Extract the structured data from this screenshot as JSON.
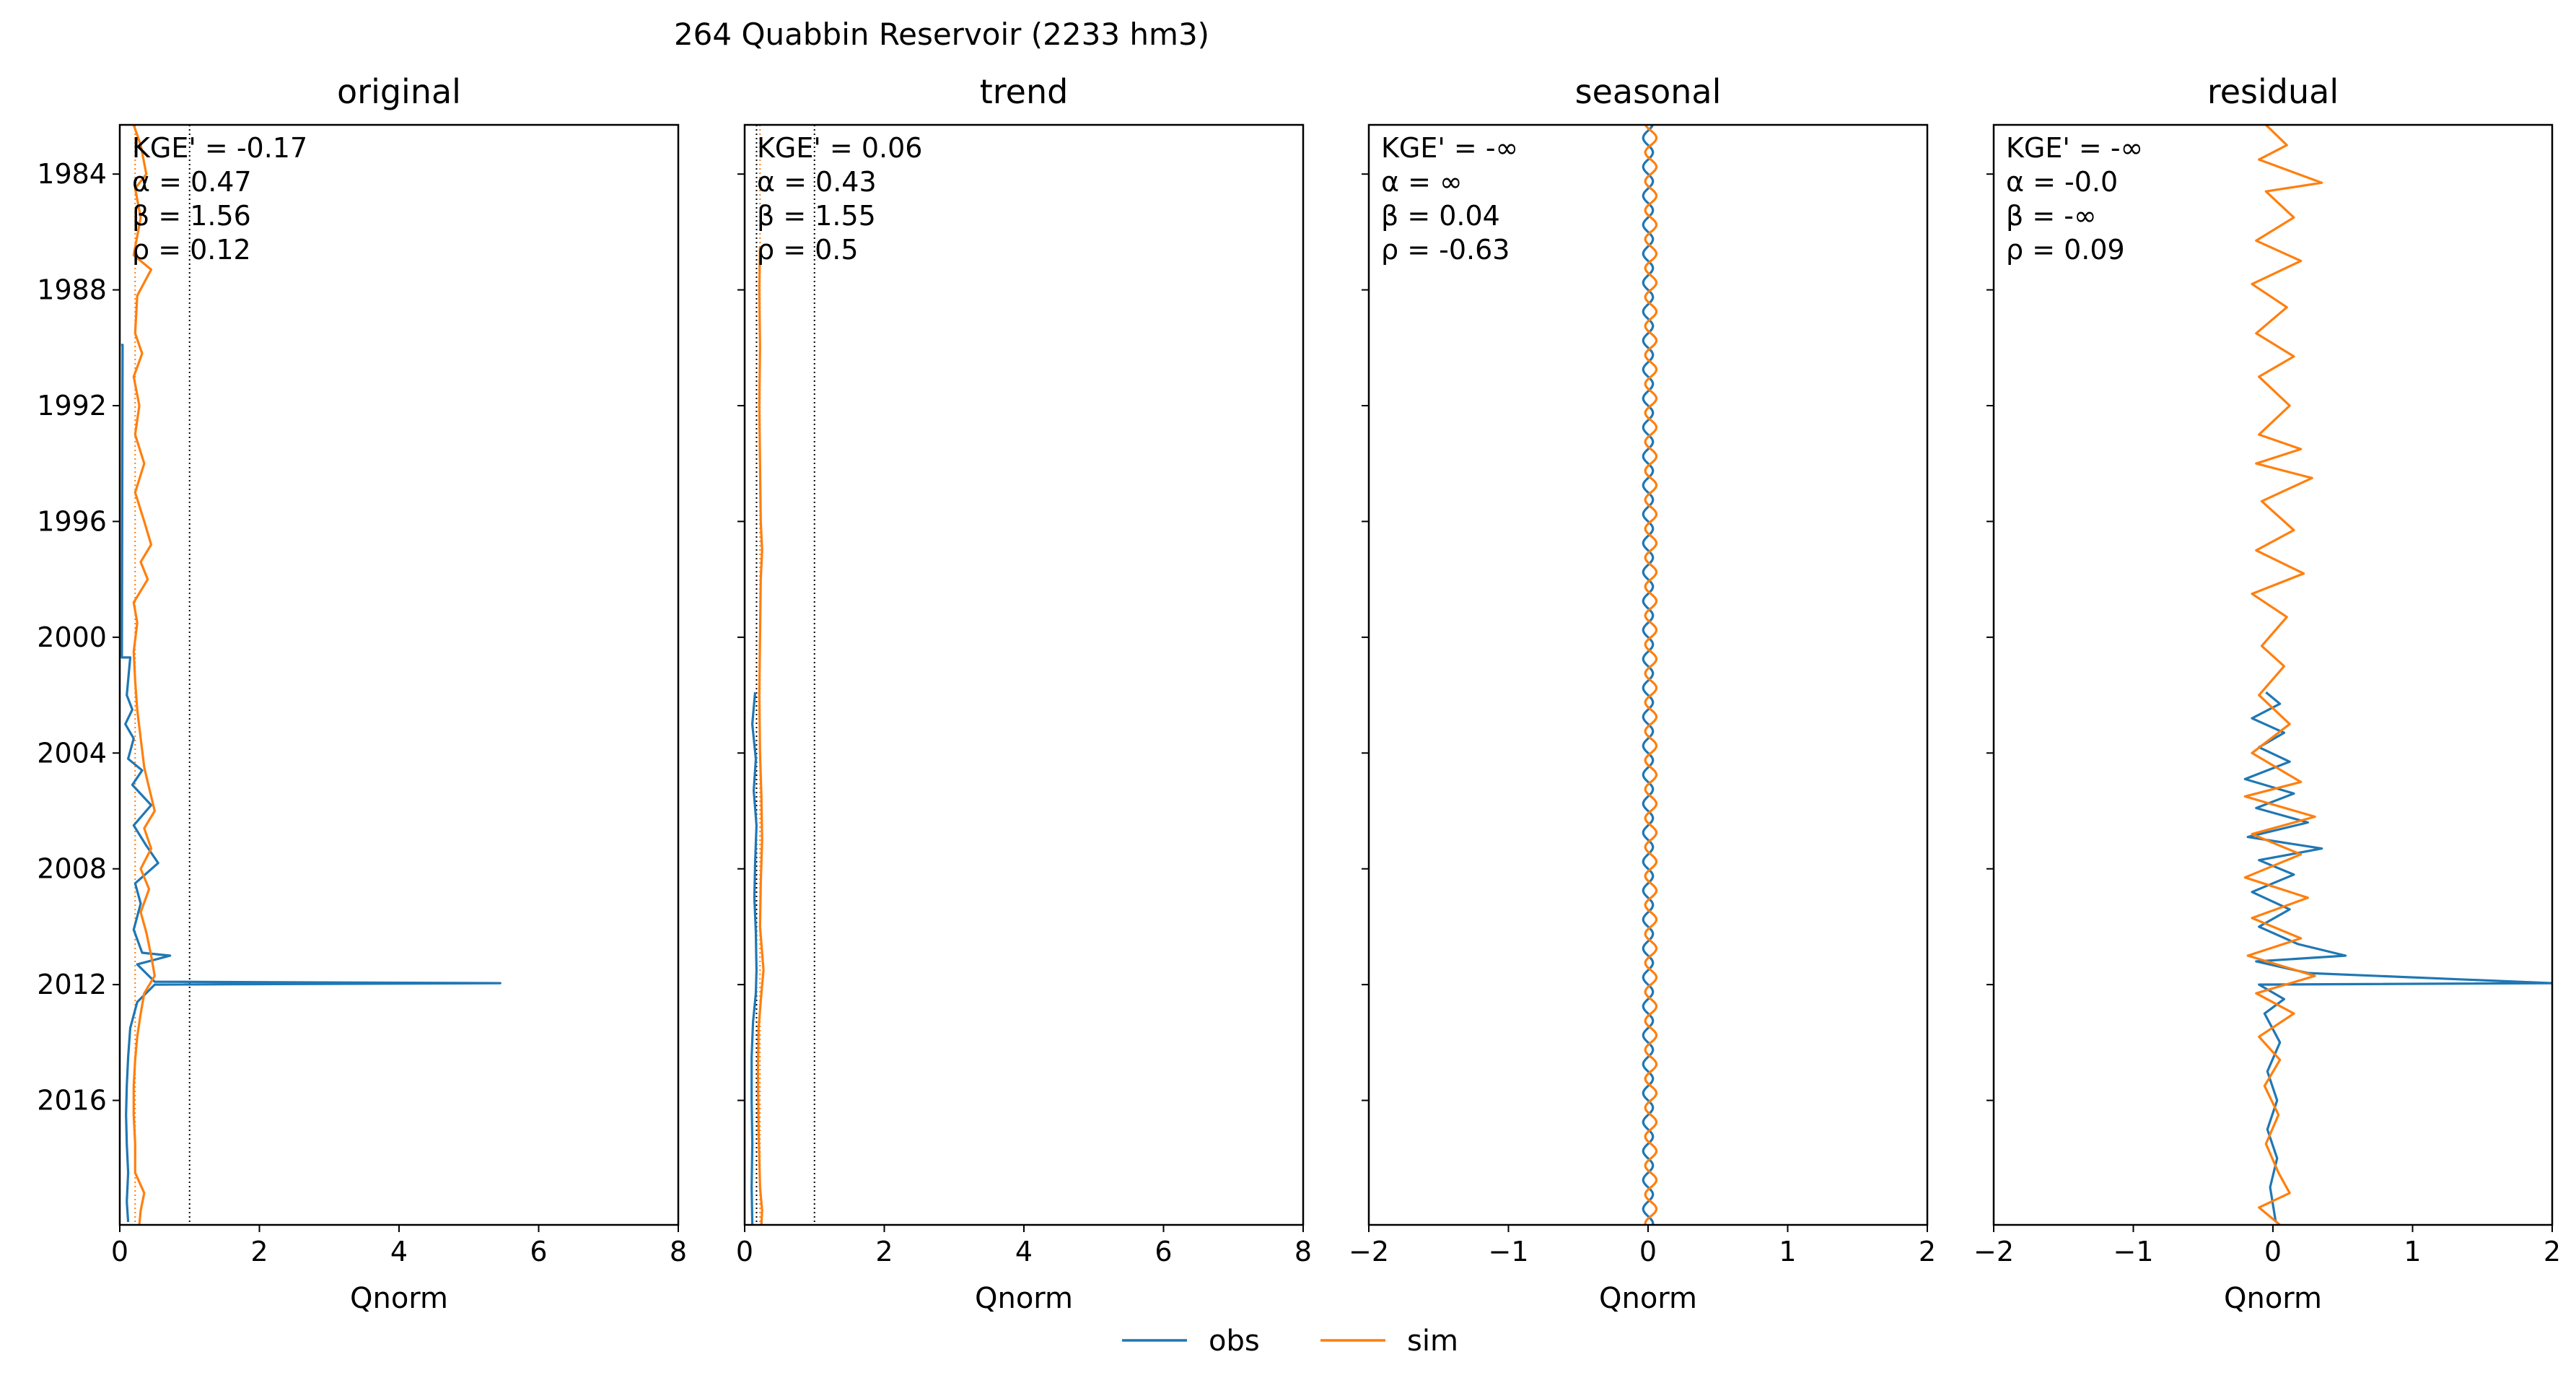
{
  "figure": {
    "suptitle": "264  Quabbin Reservoir (2233 hm3)"
  },
  "colors": {
    "obs": "#1f77b4",
    "sim": "#ff7f0e",
    "ref_line": "#000000"
  },
  "legend": {
    "placement": "bottom-center",
    "entries": [
      "obs",
      "sim"
    ]
  },
  "chart_data": [
    {
      "type": "line",
      "title": "original",
      "xlabel": "Qnorm",
      "xlim": [
        0,
        8
      ],
      "xticks": [
        "0",
        "2",
        "4",
        "6",
        "8"
      ],
      "ylim": [
        1982.3,
        2020.3
      ],
      "yticks": [
        "1984",
        "1988",
        "1992",
        "1996",
        "2000",
        "2004",
        "2008",
        "2012",
        "2016"
      ],
      "ylabels_visible": true,
      "ref_lines": [
        0.22,
        1.0
      ],
      "ref_line_colors": [
        "sim",
        "ref_line"
      ],
      "stats": [
        "KGE' = -0.17",
        "α = 0.47",
        "β = 1.56",
        "ρ = 0.12"
      ],
      "series": [
        {
          "name": "obs",
          "points": [
            [
              1989.9,
              0.02
            ],
            [
              1989.9,
              0.04
            ],
            [
              2000.7,
              0.03
            ],
            [
              2000.7,
              0.15
            ],
            [
              2002.0,
              0.1
            ],
            [
              2002.5,
              0.18
            ],
            [
              2003.0,
              0.08
            ],
            [
              2003.5,
              0.2
            ],
            [
              2004.2,
              0.12
            ],
            [
              2004.6,
              0.32
            ],
            [
              2005.1,
              0.18
            ],
            [
              2005.8,
              0.45
            ],
            [
              2006.5,
              0.2
            ],
            [
              2007.2,
              0.38
            ],
            [
              2007.8,
              0.55
            ],
            [
              2008.5,
              0.22
            ],
            [
              2009.2,
              0.3
            ],
            [
              2010.1,
              0.2
            ],
            [
              2010.9,
              0.32
            ],
            [
              2011.0,
              0.72
            ],
            [
              2011.3,
              0.25
            ],
            [
              2011.9,
              0.5
            ],
            [
              2011.95,
              5.45
            ],
            [
              2012.0,
              0.5
            ],
            [
              2012.6,
              0.25
            ],
            [
              2013.5,
              0.15
            ],
            [
              2014.5,
              0.12
            ],
            [
              2015.5,
              0.1
            ],
            [
              2016.5,
              0.09
            ],
            [
              2017.5,
              0.1
            ],
            [
              2018.5,
              0.12
            ],
            [
              2019.5,
              0.1
            ],
            [
              2020.2,
              0.12
            ]
          ]
        },
        {
          "name": "sim",
          "points": [
            [
              1982.3,
              0.2
            ],
            [
              1983.0,
              0.3
            ],
            [
              1984.0,
              0.38
            ],
            [
              1984.5,
              0.22
            ],
            [
              1985.5,
              0.3
            ],
            [
              1986.8,
              0.2
            ],
            [
              1987.3,
              0.45
            ],
            [
              1988.2,
              0.25
            ],
            [
              1989.5,
              0.22
            ],
            [
              1990.2,
              0.32
            ],
            [
              1991.0,
              0.2
            ],
            [
              1992.0,
              0.28
            ],
            [
              1993.0,
              0.22
            ],
            [
              1994.0,
              0.35
            ],
            [
              1995.0,
              0.22
            ],
            [
              1996.0,
              0.35
            ],
            [
              1996.8,
              0.45
            ],
            [
              1997.4,
              0.3
            ],
            [
              1998.0,
              0.4
            ],
            [
              1998.8,
              0.2
            ],
            [
              1999.5,
              0.25
            ],
            [
              2000.5,
              0.2
            ],
            [
              2001.5,
              0.22
            ],
            [
              2002.5,
              0.25
            ],
            [
              2003.5,
              0.3
            ],
            [
              2004.5,
              0.35
            ],
            [
              2005.2,
              0.42
            ],
            [
              2006.0,
              0.5
            ],
            [
              2006.6,
              0.35
            ],
            [
              2007.3,
              0.45
            ],
            [
              2008.0,
              0.3
            ],
            [
              2008.7,
              0.42
            ],
            [
              2009.5,
              0.3
            ],
            [
              2010.2,
              0.38
            ],
            [
              2011.0,
              0.45
            ],
            [
              2011.7,
              0.5
            ],
            [
              2012.3,
              0.35
            ],
            [
              2013.0,
              0.3
            ],
            [
              2013.8,
              0.25
            ],
            [
              2014.6,
              0.22
            ],
            [
              2015.5,
              0.2
            ],
            [
              2016.5,
              0.2
            ],
            [
              2017.5,
              0.22
            ],
            [
              2018.5,
              0.22
            ],
            [
              2019.2,
              0.35
            ],
            [
              2019.8,
              0.3
            ],
            [
              2020.3,
              0.28
            ]
          ]
        }
      ]
    },
    {
      "type": "line",
      "title": "trend",
      "xlabel": "Qnorm",
      "xlim": [
        0,
        8
      ],
      "xticks": [
        "0",
        "2",
        "4",
        "6",
        "8"
      ],
      "ylim": [
        1982.3,
        2020.3
      ],
      "yticks": [
        "1984",
        "1988",
        "1992",
        "1996",
        "2000",
        "2004",
        "2008",
        "2012",
        "2016"
      ],
      "ylabels_visible": false,
      "ref_lines": [
        0.17,
        0.22,
        1.0
      ],
      "ref_line_colors": [
        "ref_line",
        "sim",
        "ref_line"
      ],
      "stats": [
        "KGE' = 0.06",
        "α = 0.43",
        "β = 1.55",
        "ρ = 0.5"
      ],
      "series": [
        {
          "name": "obs",
          "points": [
            [
              2001.9,
              0.15
            ],
            [
              2003.0,
              0.11
            ],
            [
              2004.2,
              0.16
            ],
            [
              2005.3,
              0.13
            ],
            [
              2006.5,
              0.17
            ],
            [
              2007.8,
              0.15
            ],
            [
              2009.0,
              0.14
            ],
            [
              2010.2,
              0.16
            ],
            [
              2011.5,
              0.17
            ],
            [
              2012.3,
              0.16
            ],
            [
              2013.3,
              0.12
            ],
            [
              2014.5,
              0.1
            ],
            [
              2016.0,
              0.1
            ],
            [
              2017.5,
              0.11
            ],
            [
              2019.0,
              0.1
            ],
            [
              2020.3,
              0.11
            ]
          ]
        },
        {
          "name": "sim",
          "points": [
            [
              1986.5,
              0.22
            ],
            [
              1988.0,
              0.21
            ],
            [
              1990.0,
              0.22
            ],
            [
              1992.0,
              0.21
            ],
            [
              1994.0,
              0.22
            ],
            [
              1996.0,
              0.23
            ],
            [
              1997.0,
              0.25
            ],
            [
              1998.0,
              0.23
            ],
            [
              2000.0,
              0.22
            ],
            [
              2002.0,
              0.21
            ],
            [
              2004.0,
              0.22
            ],
            [
              2005.5,
              0.24
            ],
            [
              2007.0,
              0.25
            ],
            [
              2008.5,
              0.23
            ],
            [
              2010.0,
              0.22
            ],
            [
              2011.5,
              0.27
            ],
            [
              2012.3,
              0.24
            ],
            [
              2013.5,
              0.2
            ],
            [
              2015.0,
              0.19
            ],
            [
              2017.0,
              0.2
            ],
            [
              2019.0,
              0.22
            ],
            [
              2019.8,
              0.25
            ],
            [
              2020.3,
              0.24
            ]
          ]
        }
      ]
    },
    {
      "type": "line",
      "title": "seasonal",
      "xlabel": "Qnorm",
      "xlim": [
        -2,
        2
      ],
      "xticks": [
        "−2",
        "−1",
        "0",
        "1",
        "2"
      ],
      "ylim": [
        1982.3,
        2020.3
      ],
      "yticks": [
        "1984",
        "1988",
        "1992",
        "1996",
        "2000",
        "2004",
        "2008",
        "2012",
        "2016"
      ],
      "ylabels_visible": false,
      "ref_lines": [],
      "ref_line_colors": [],
      "stats": [
        "KGE' = -∞",
        "α = ∞",
        "β = 0.04",
        "ρ = -0.63"
      ],
      "series": [
        {
          "name": "obs",
          "seasonal": {
            "start": 1982.3,
            "end": 2020.3,
            "center": 0.0,
            "amplitude": 0.035,
            "phase": 0.0
          }
        },
        {
          "name": "sim",
          "seasonal": {
            "start": 1982.3,
            "end": 2020.3,
            "center": 0.02,
            "amplitude": 0.04,
            "phase": 0.5
          }
        }
      ]
    },
    {
      "type": "line",
      "title": "residual",
      "xlabel": "Qnorm",
      "xlim": [
        -2,
        2
      ],
      "xticks": [
        "−2",
        "−1",
        "0",
        "1",
        "2"
      ],
      "ylim": [
        1982.3,
        2020.3
      ],
      "yticks": [
        "1984",
        "1988",
        "1992",
        "1996",
        "2000",
        "2004",
        "2008",
        "2012",
        "2016"
      ],
      "ylabels_visible": false,
      "ref_lines": [],
      "ref_line_colors": [],
      "stats": [
        "KGE' = -∞",
        "α = -0.0",
        "β = -∞",
        "ρ = 0.09"
      ],
      "series": [
        {
          "name": "obs",
          "points": [
            [
              2001.9,
              -0.05
            ],
            [
              2002.3,
              0.05
            ],
            [
              2002.8,
              -0.15
            ],
            [
              2003.3,
              0.08
            ],
            [
              2003.8,
              -0.1
            ],
            [
              2004.3,
              0.12
            ],
            [
              2004.9,
              -0.2
            ],
            [
              2005.4,
              0.15
            ],
            [
              2005.9,
              -0.12
            ],
            [
              2006.4,
              0.25
            ],
            [
              2006.9,
              -0.18
            ],
            [
              2007.3,
              0.35
            ],
            [
              2007.7,
              -0.1
            ],
            [
              2008.2,
              0.15
            ],
            [
              2008.8,
              -0.15
            ],
            [
              2009.4,
              0.12
            ],
            [
              2010.0,
              -0.1
            ],
            [
              2010.6,
              0.18
            ],
            [
              2011.0,
              0.52
            ],
            [
              2011.2,
              -0.12
            ],
            [
              2011.6,
              0.25
            ],
            [
              2011.95,
              2.0
            ],
            [
              2012.0,
              -0.1
            ],
            [
              2012.5,
              0.08
            ],
            [
              2013.0,
              -0.06
            ],
            [
              2014.0,
              0.05
            ],
            [
              2015.0,
              -0.04
            ],
            [
              2016.0,
              0.03
            ],
            [
              2017.0,
              -0.04
            ],
            [
              2018.0,
              0.03
            ],
            [
              2019.0,
              -0.02
            ],
            [
              2020.2,
              0.02
            ]
          ]
        },
        {
          "name": "sim",
          "points": [
            [
              1982.3,
              -0.05
            ],
            [
              1983.0,
              0.1
            ],
            [
              1983.5,
              -0.1
            ],
            [
              1984.3,
              0.35
            ],
            [
              1984.6,
              -0.05
            ],
            [
              1985.5,
              0.15
            ],
            [
              1986.3,
              -0.12
            ],
            [
              1987.0,
              0.2
            ],
            [
              1987.8,
              -0.15
            ],
            [
              1988.6,
              0.1
            ],
            [
              1989.5,
              -0.12
            ],
            [
              1990.3,
              0.15
            ],
            [
              1991.0,
              -0.1
            ],
            [
              1992.0,
              0.12
            ],
            [
              1993.0,
              -0.1
            ],
            [
              1993.5,
              0.2
            ],
            [
              1994.0,
              -0.12
            ],
            [
              1994.5,
              0.28
            ],
            [
              1995.3,
              -0.08
            ],
            [
              1996.3,
              0.15
            ],
            [
              1997.0,
              -0.12
            ],
            [
              1997.8,
              0.22
            ],
            [
              1998.5,
              -0.15
            ],
            [
              1999.3,
              0.1
            ],
            [
              2000.3,
              -0.08
            ],
            [
              2001.0,
              0.08
            ],
            [
              2002.0,
              -0.1
            ],
            [
              2003.0,
              0.12
            ],
            [
              2004.0,
              -0.15
            ],
            [
              2005.0,
              0.2
            ],
            [
              2005.5,
              -0.2
            ],
            [
              2006.2,
              0.3
            ],
            [
              2006.8,
              -0.15
            ],
            [
              2007.5,
              0.2
            ],
            [
              2008.3,
              -0.2
            ],
            [
              2009.0,
              0.25
            ],
            [
              2009.7,
              -0.15
            ],
            [
              2010.4,
              0.2
            ],
            [
              2011.0,
              -0.18
            ],
            [
              2011.7,
              0.3
            ],
            [
              2012.3,
              -0.12
            ],
            [
              2013.0,
              0.15
            ],
            [
              2013.8,
              -0.1
            ],
            [
              2014.6,
              0.05
            ],
            [
              2015.5,
              -0.06
            ],
            [
              2016.5,
              0.04
            ],
            [
              2017.5,
              -0.05
            ],
            [
              2018.5,
              0.04
            ],
            [
              2019.2,
              0.12
            ],
            [
              2019.7,
              -0.1
            ],
            [
              2020.3,
              0.05
            ]
          ]
        }
      ]
    }
  ]
}
